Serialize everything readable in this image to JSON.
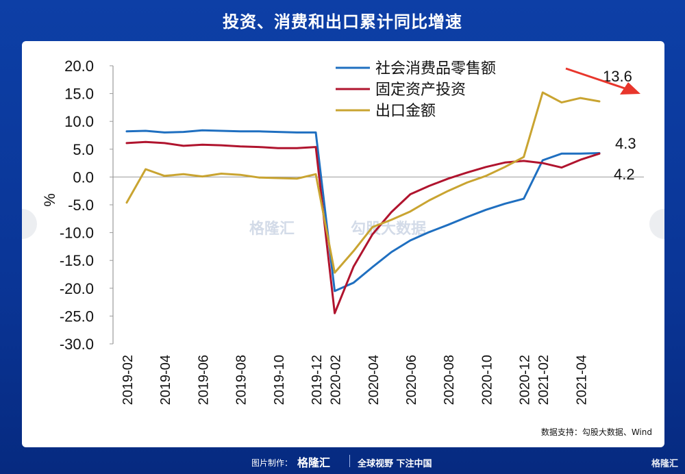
{
  "title": "投资、消费和出口累计同比增速",
  "source": "数据支持：勾股大数据、Wind",
  "footer": {
    "made_label": "图片制作：",
    "brand": "格隆汇",
    "slogan": "全球视野 下注中国",
    "corner_brand": "格隆汇"
  },
  "watermark": {
    "left": "格隆汇",
    "right": "勾股大数据"
  },
  "colors": {
    "retail": "#1f6fc0",
    "fixed": "#b0142e",
    "export": "#c9a431",
    "arrow": "#e8362c",
    "background": "#0d3fa6"
  },
  "chart_data": {
    "type": "line",
    "ylabel": "%",
    "ylim": [
      -30,
      20
    ],
    "yticks": [
      20,
      15,
      10,
      5,
      0,
      -5,
      -10,
      -15,
      -20,
      -25,
      -30
    ],
    "ytick_labels": [
      "20.0",
      "15.0",
      "10.0",
      "5.0",
      "0.0",
      "-5.0",
      "-10.0",
      "-15.0",
      "-20.0",
      "-25.0",
      "-30.0"
    ],
    "x": [
      "2019-02",
      "2019-03",
      "2019-04",
      "2019-05",
      "2019-06",
      "2019-07",
      "2019-08",
      "2019-09",
      "2019-10",
      "2019-11",
      "2019-12",
      "2020-02",
      "2020-03",
      "2020-04",
      "2020-05",
      "2020-06",
      "2020-07",
      "2020-08",
      "2020-09",
      "2020-10",
      "2020-11",
      "2020-12",
      "2021-02",
      "2021-03",
      "2021-04",
      "2021-05"
    ],
    "xtick_labels": [
      "2019-02",
      "2019-04",
      "2019-06",
      "2019-08",
      "2019-10",
      "2019-12",
      "2020-02",
      "2020-04",
      "2020-06",
      "2020-08",
      "2020-10",
      "2020-12",
      "2021-02",
      "2021-04"
    ],
    "series": [
      {
        "name": "社会消费品零售额",
        "color": "#1f6fc0",
        "values": [
          8.2,
          8.3,
          8.0,
          8.1,
          8.4,
          8.3,
          8.2,
          8.2,
          8.1,
          8.0,
          8.0,
          -20.5,
          -19.0,
          -16.2,
          -13.5,
          -11.4,
          -9.9,
          -8.6,
          -7.2,
          -5.9,
          -4.8,
          -3.9,
          3.0,
          4.2,
          4.2,
          4.3
        ]
      },
      {
        "name": "固定资产投资",
        "color": "#b0142e",
        "values": [
          6.1,
          6.3,
          6.1,
          5.6,
          5.8,
          5.7,
          5.5,
          5.4,
          5.2,
          5.2,
          5.4,
          -24.5,
          -16.1,
          -10.3,
          -6.3,
          -3.1,
          -1.6,
          -0.3,
          0.8,
          1.8,
          2.6,
          2.9,
          2.5,
          1.7,
          3.1,
          4.2
        ]
      },
      {
        "name": "出口金额",
        "color": "#c9a431",
        "values": [
          -4.6,
          1.4,
          0.2,
          0.5,
          0.1,
          0.6,
          0.4,
          -0.1,
          -0.2,
          -0.3,
          0.5,
          -17.2,
          -13.3,
          -9.0,
          -7.7,
          -6.2,
          -4.2,
          -2.5,
          -1.0,
          0.2,
          1.8,
          3.6,
          15.2,
          13.4,
          14.2,
          13.6
        ]
      }
    ],
    "annotations": [
      "13.6",
      "4.3",
      "4.2"
    ],
    "legend_position": "top-center",
    "grid": false
  }
}
